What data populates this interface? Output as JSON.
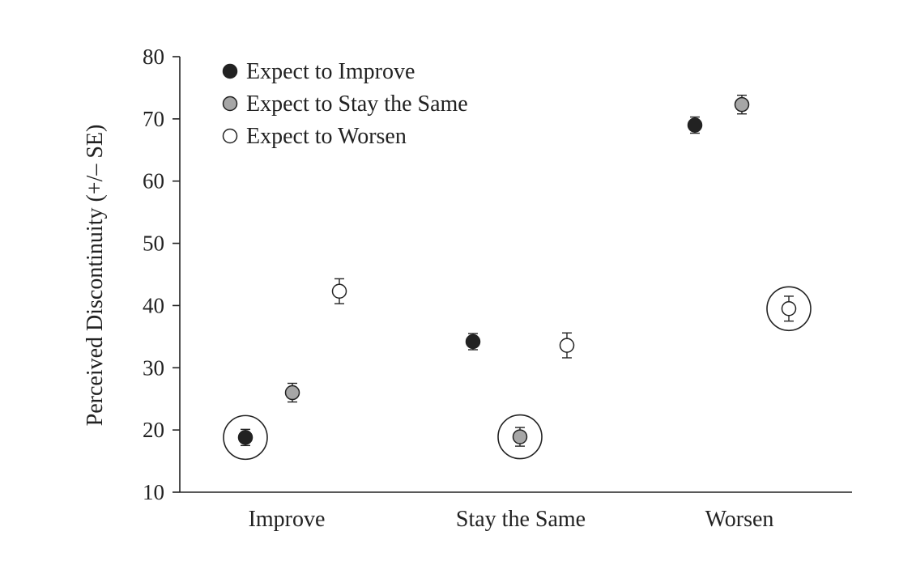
{
  "chart_data": {
    "type": "scatter",
    "title": "",
    "xlabel": "",
    "ylabel": "Perceived Discontinuity (+/– SE)",
    "ylim": [
      10,
      80
    ],
    "yticks": [
      10,
      20,
      30,
      40,
      50,
      60,
      70,
      80
    ],
    "categories": [
      "Improve",
      "Stay the Same",
      "Worsen"
    ],
    "grid": false,
    "legend_position": "top-left",
    "series": [
      {
        "name": "Expect to Improve",
        "fill": "#222222",
        "values": [
          18.8,
          34.2,
          69.0
        ],
        "se": [
          1.3,
          1.3,
          1.3
        ],
        "circled": [
          true,
          false,
          false
        ]
      },
      {
        "name": "Expect to Stay the Same",
        "fill": "#a6a6a6",
        "values": [
          26.0,
          18.9,
          72.3
        ],
        "se": [
          1.5,
          1.5,
          1.5
        ],
        "circled": [
          false,
          true,
          false
        ]
      },
      {
        "name": "Expect to Worsen",
        "fill": "#ffffff",
        "values": [
          42.3,
          33.6,
          39.5
        ],
        "se": [
          2.0,
          2.0,
          2.0
        ],
        "circled": [
          false,
          false,
          true
        ]
      }
    ]
  }
}
